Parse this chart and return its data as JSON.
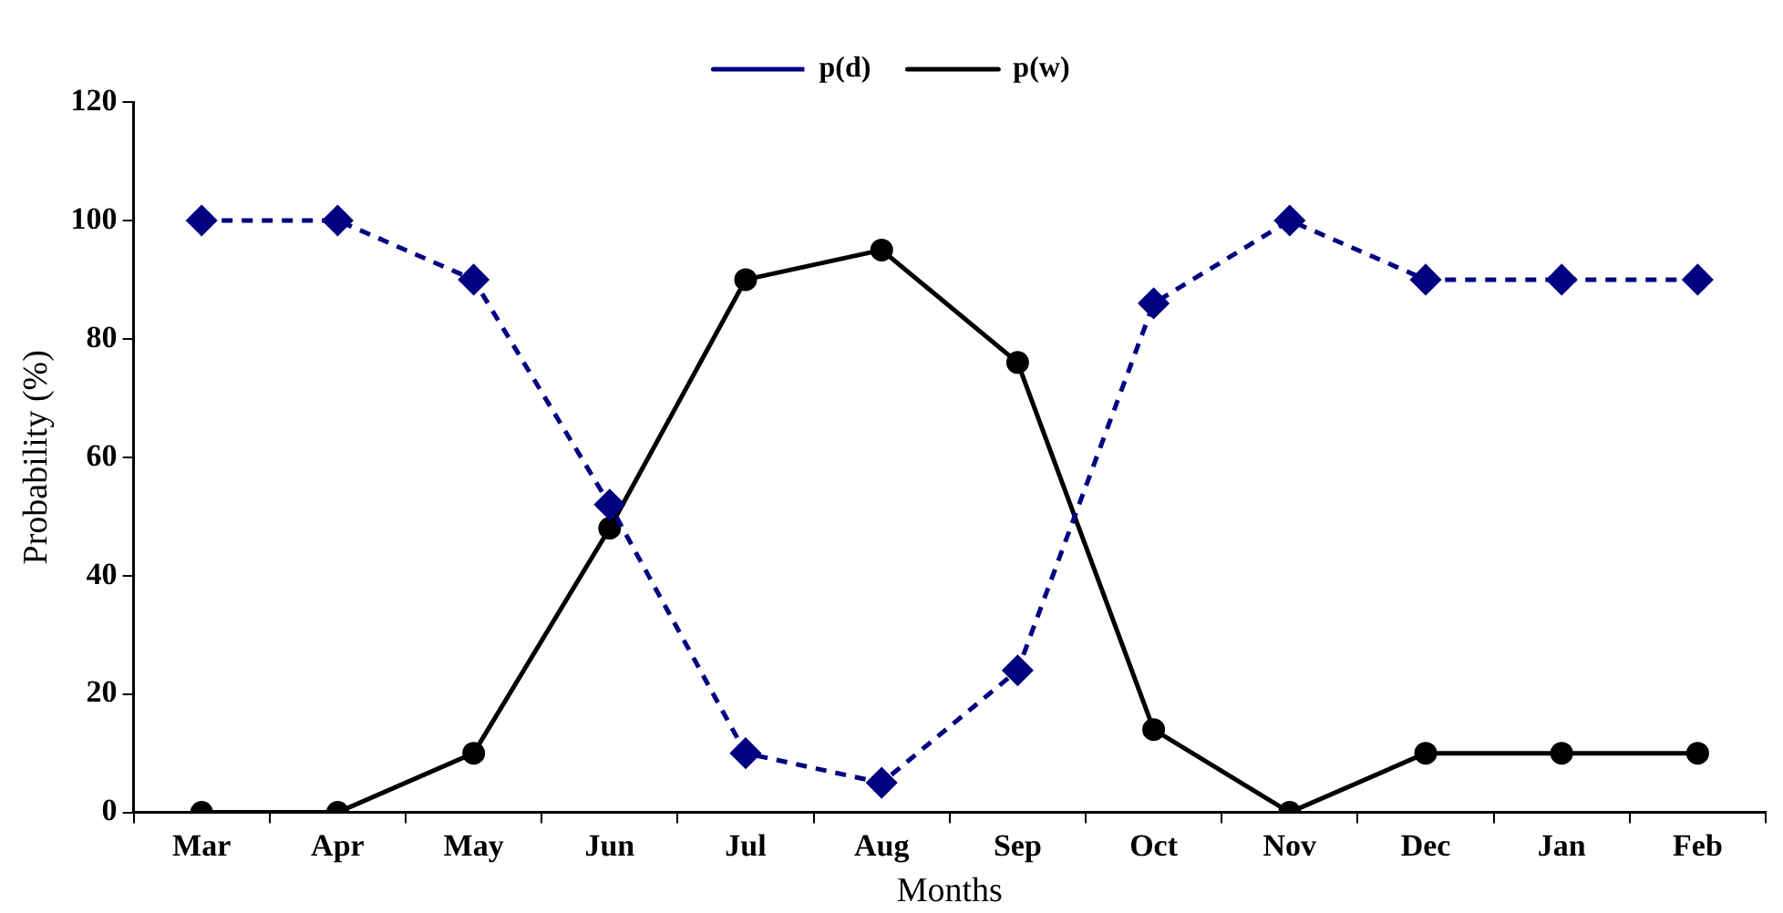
{
  "chart_data": {
    "type": "line",
    "xlabel": "Months",
    "ylabel": "Probability (%)",
    "categories": [
      "Mar",
      "Apr",
      "May",
      "Jun",
      "Jul",
      "Aug",
      "Sep",
      "Oct",
      "Nov",
      "Dec",
      "Jan",
      "Feb"
    ],
    "series": [
      {
        "name": "p(d)",
        "color": "#000080",
        "marker": "diamond",
        "line_style": "dashed",
        "values": [
          100,
          100,
          90,
          52,
          10,
          5,
          24,
          86,
          100,
          90,
          90,
          90
        ]
      },
      {
        "name": "p(w)",
        "color": "#000000",
        "marker": "circle",
        "line_style": "solid",
        "values": [
          0,
          0,
          10,
          48,
          90,
          95,
          76,
          14,
          0,
          10,
          10,
          10
        ]
      }
    ],
    "ylim": [
      0,
      120
    ],
    "yticks": [
      0,
      20,
      40,
      60,
      80,
      100,
      120
    ],
    "grid": false,
    "legend": "top"
  }
}
